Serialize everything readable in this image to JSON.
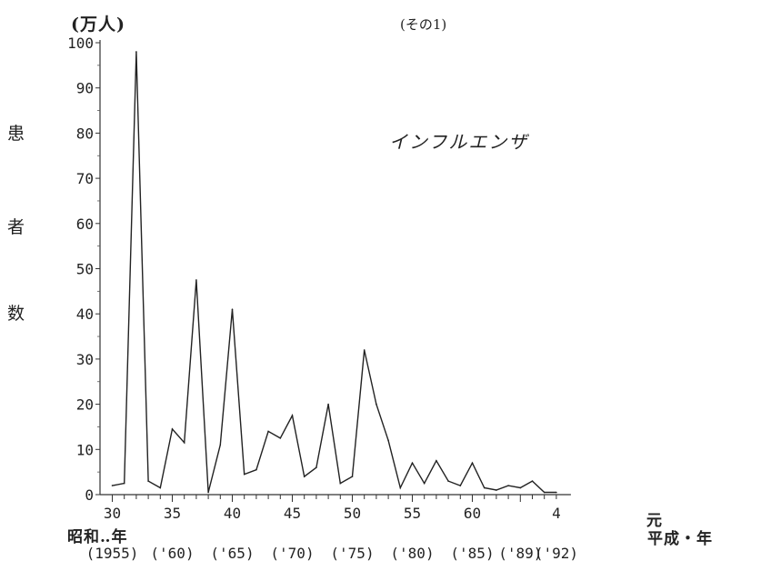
{
  "chart_data": {
    "type": "line",
    "series_title": "インフルエンザ",
    "part_label": "(その1)",
    "unit_label": "(万人)",
    "ylabel_chars": [
      "患",
      "者",
      "数"
    ],
    "ylim": [
      0,
      100
    ],
    "y_ticks": [
      0,
      10,
      20,
      30,
      40,
      50,
      60,
      70,
      80,
      90,
      100
    ],
    "xlim": [
      30,
      4
    ],
    "x_years": [
      30,
      31,
      32,
      33,
      34,
      35,
      36,
      37,
      38,
      39,
      40,
      41,
      42,
      43,
      44,
      45,
      46,
      47,
      48,
      49,
      50,
      51,
      52,
      53,
      54,
      55,
      56,
      57,
      58,
      59,
      60,
      61,
      62,
      63,
      "元",
      2,
      3,
      4
    ],
    "x_ticks": [
      "30",
      "35",
      "40",
      "45",
      "50",
      "55",
      "60",
      "元",
      "4"
    ],
    "values": [
      2,
      2.5,
      98,
      3,
      1.5,
      14.5,
      11.5,
      47.5,
      0.5,
      11,
      41,
      4.5,
      5.5,
      14,
      12.5,
      17.5,
      4,
      6,
      20,
      2.5,
      4,
      32,
      20,
      12,
      1.5,
      7,
      2.5,
      7.5,
      3,
      2,
      7,
      1.5,
      1,
      2,
      1.5,
      3,
      0.5,
      0.5
    ],
    "era_showa_label": "昭和‥年",
    "era_heisei_label": "平成・年",
    "western_year_labels": [
      "(1955)",
      "('60)",
      "('65)",
      "('70)",
      "('75)",
      "('80)",
      "('85)",
      "('89)",
      "('92)"
    ],
    "line_color": "#222222",
    "grid": false,
    "legend": "none"
  }
}
